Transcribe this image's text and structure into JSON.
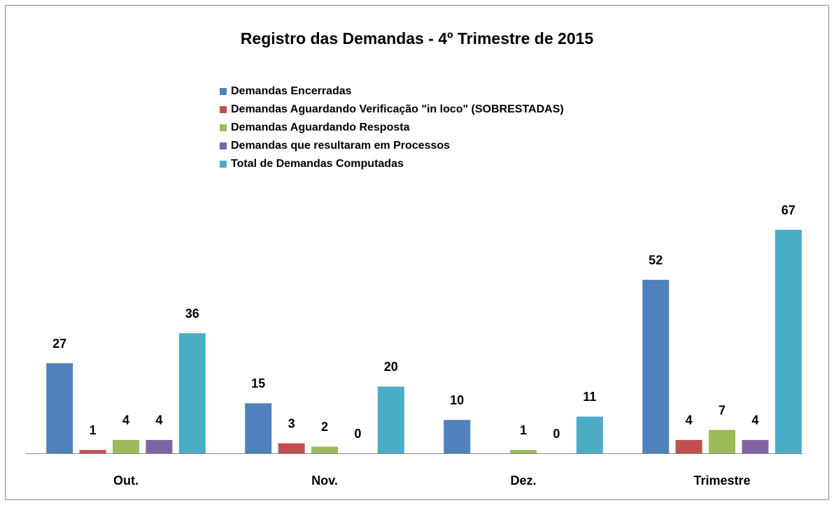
{
  "chart_data": {
    "type": "bar",
    "title": "Registro das Demandas - 4º Trimestre de 2015",
    "categories": [
      "Out.",
      "Nov.",
      "Dez.",
      "Trimestre"
    ],
    "series": [
      {
        "name": "Demandas Encerradas",
        "color": "#4f81bd",
        "values": [
          27,
          15,
          10,
          52
        ]
      },
      {
        "name": "Demandas Aguardando Verificação \"in loco\" (SOBRESTADAS)",
        "color": "#c0504d",
        "values": [
          1,
          3,
          null,
          4
        ]
      },
      {
        "name": "Demandas Aguardando Resposta",
        "color": "#9bbb59",
        "values": [
          4,
          2,
          1,
          7
        ]
      },
      {
        "name": "Demandas que resultaram em Processos",
        "color": "#8064a2",
        "values": [
          4,
          0,
          0,
          4
        ]
      },
      {
        "name": "Total de Demandas Computadas",
        "color": "#4bacc6",
        "values": [
          36,
          20,
          11,
          67
        ]
      }
    ],
    "legend": "top"
  }
}
